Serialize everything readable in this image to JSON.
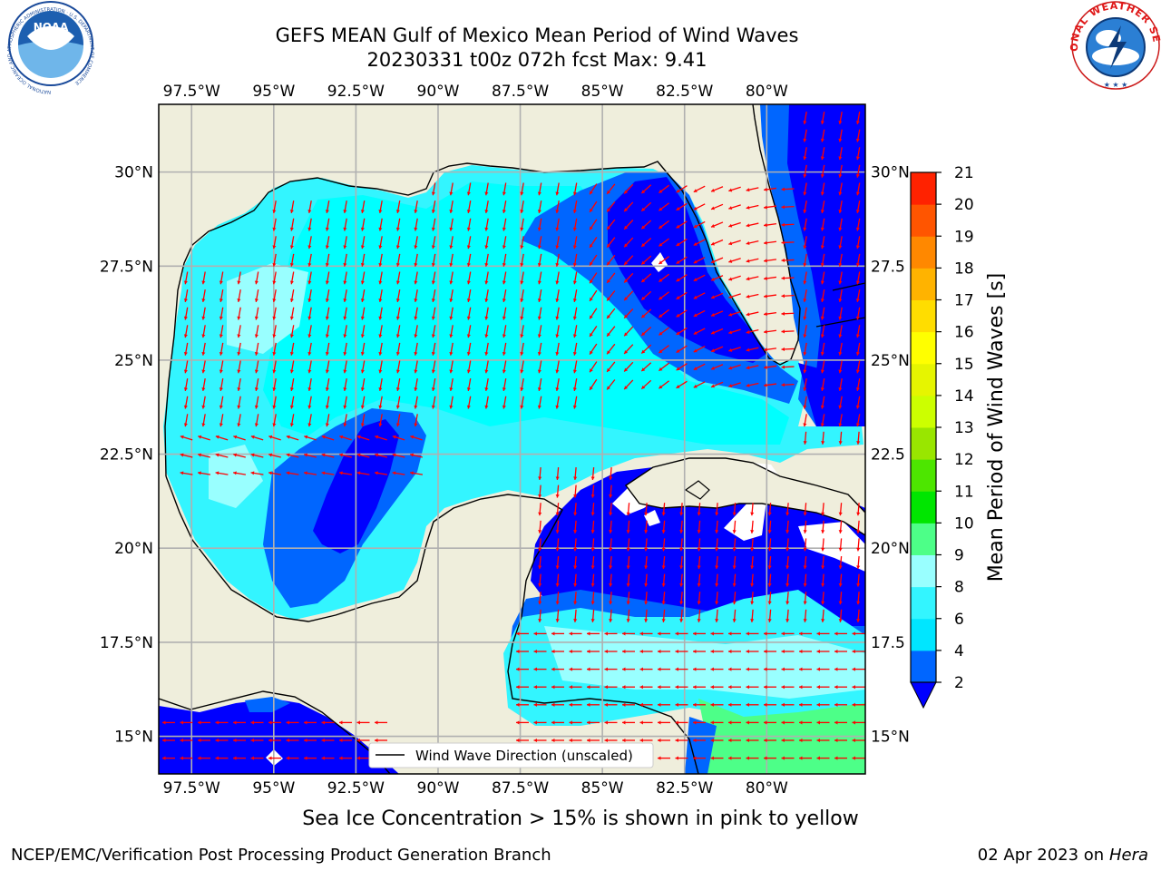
{
  "header": {
    "title_line1": "GEFS MEAN Gulf of Mexico Mean Period of Wind Waves",
    "title_line2": "20230331 t00z 072h fcst   Max: 9.41"
  },
  "logos": {
    "left": {
      "text": "NOAA",
      "ring_text": "NATIONAL OCEANIC AND ATMOSPHERIC ADMINISTRATION · U.S. DEPARTMENT OF COMMERCE",
      "icon": "noaa-logo"
    },
    "right": {
      "ring_text": "NATIONAL WEATHER SERVICE",
      "icon": "nws-logo"
    }
  },
  "map": {
    "lon_range": [
      -98.5,
      -77.0
    ],
    "lat_range": [
      14.0,
      31.8
    ],
    "lon_ticks": [
      "97.5°W",
      "95°W",
      "92.5°W",
      "90°W",
      "87.5°W",
      "85°W",
      "82.5°W",
      "80°W"
    ],
    "lon_tick_values": [
      -97.5,
      -95,
      -92.5,
      -90,
      -87.5,
      -85,
      -82.5,
      -80
    ],
    "lat_ticks_left": [
      "15°N",
      "17.5°N",
      "20°N",
      "22.5°N",
      "25°N",
      "27.5°N",
      "30°N"
    ],
    "lat_ticks_right": [
      "15°N",
      "17.5",
      "20°N",
      "22.5",
      "25°N",
      "27.5",
      "30°N"
    ],
    "lat_tick_values": [
      15,
      17.5,
      20,
      22.5,
      25,
      27.5,
      30
    ],
    "legend_label": "Wind Wave Direction (unscaled)",
    "colors": {
      "land": "#efeedc",
      "ocean_white": "#ffffff",
      "arrows": "#ff0000",
      "grid": "#b0b0b0"
    }
  },
  "colorbar": {
    "label": "Mean Period of Wind Waves [s]",
    "ticks": [
      "2",
      "4",
      "6",
      "8",
      "9",
      "10",
      "11",
      "12",
      "13",
      "14",
      "15",
      "16",
      "17",
      "18",
      "19",
      "20",
      "21"
    ],
    "colors": [
      "#0066ff",
      "#00e6ff",
      "#33f5ff",
      "#99ffff",
      "#4dff88",
      "#00e600",
      "#4de600",
      "#99e600",
      "#ccff00",
      "#e6f500",
      "#ffff00",
      "#ffdd00",
      "#ffb300",
      "#ff8800",
      "#ff5500",
      "#ff2200"
    ],
    "under_color": "#0000ff"
  },
  "footer": {
    "subtitle": "Sea Ice Concentration > 15% is shown in pink to yellow",
    "credit": "NCEP/EMC/Verification Post Processing Product Generation Branch",
    "date_prefix": "02 Apr 2023 on ",
    "date_host": "Hera"
  }
}
